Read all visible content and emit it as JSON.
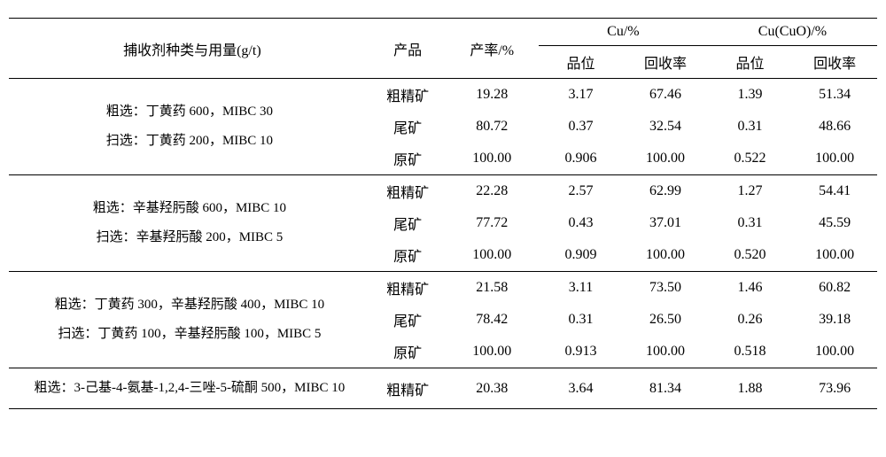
{
  "headers": {
    "collector": "捕收剂种类与用量(g/t)",
    "product": "产品",
    "yield": "产率/%",
    "cu": "Cu/%",
    "cu_grade": "品位",
    "cu_recovery": "回收率",
    "cuo": "Cu(CuO)/%",
    "cuo_grade": "品位",
    "cuo_recovery": "回收率"
  },
  "groups": [
    {
      "collector_lines": [
        "粗选：丁黄药 600，MIBC 30",
        "扫选：丁黄药 200，MIBC 10"
      ],
      "rows": [
        {
          "product": "粗精矿",
          "yield": "19.28",
          "cu_grade": "3.17",
          "cu_rec": "67.46",
          "cuo_grade": "1.39",
          "cuo_rec": "51.34"
        },
        {
          "product": "尾矿",
          "yield": "80.72",
          "cu_grade": "0.37",
          "cu_rec": "32.54",
          "cuo_grade": "0.31",
          "cuo_rec": "48.66"
        },
        {
          "product": "原矿",
          "yield": "100.00",
          "cu_grade": "0.906",
          "cu_rec": "100.00",
          "cuo_grade": "0.522",
          "cuo_rec": "100.00"
        }
      ]
    },
    {
      "collector_lines": [
        "粗选：辛基羟肟酸 600，MIBC 10",
        "扫选：辛基羟肟酸 200，MIBC 5"
      ],
      "rows": [
        {
          "product": "粗精矿",
          "yield": "22.28",
          "cu_grade": "2.57",
          "cu_rec": "62.99",
          "cuo_grade": "1.27",
          "cuo_rec": "54.41"
        },
        {
          "product": "尾矿",
          "yield": "77.72",
          "cu_grade": "0.43",
          "cu_rec": "37.01",
          "cuo_grade": "0.31",
          "cuo_rec": "45.59"
        },
        {
          "product": "原矿",
          "yield": "100.00",
          "cu_grade": "0.909",
          "cu_rec": "100.00",
          "cuo_grade": "0.520",
          "cuo_rec": "100.00"
        }
      ]
    },
    {
      "collector_lines": [
        "粗选：丁黄药 300，辛基羟肟酸 400，MIBC 10",
        "扫选：丁黄药 100，辛基羟肟酸 100，MIBC 5"
      ],
      "rows": [
        {
          "product": "粗精矿",
          "yield": "21.58",
          "cu_grade": "3.11",
          "cu_rec": "73.50",
          "cuo_grade": "1.46",
          "cuo_rec": "60.82"
        },
        {
          "product": "尾矿",
          "yield": "78.42",
          "cu_grade": "0.31",
          "cu_rec": "26.50",
          "cuo_grade": "0.26",
          "cuo_rec": "39.18"
        },
        {
          "product": "原矿",
          "yield": "100.00",
          "cu_grade": "0.913",
          "cu_rec": "100.00",
          "cuo_grade": "0.518",
          "cuo_rec": "100.00"
        }
      ]
    },
    {
      "collector_lines": [
        "粗选：3-己基-4-氨基-1,2,4-三唑-5-硫酮 500，MIBC 10"
      ],
      "rows": [
        {
          "product": "粗精矿",
          "yield": "20.38",
          "cu_grade": "3.64",
          "cu_rec": "81.34",
          "cuo_grade": "1.88",
          "cuo_rec": "73.96"
        }
      ]
    }
  ]
}
